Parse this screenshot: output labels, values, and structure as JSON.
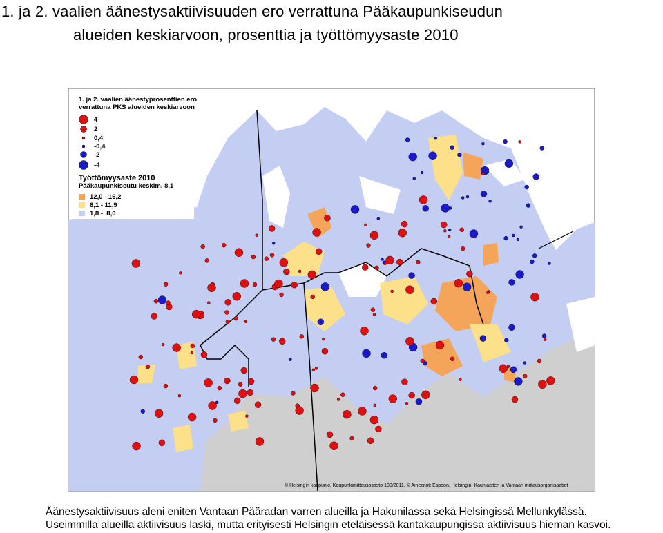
{
  "header": {
    "title_lines": [
      "1. ja 2. vaalien äänestysaktiivisuuden ero verrattuna Pääkaupunkiseudun",
      "alueiden keskiarvoon, prosenttia ja työttömyysaste 2010"
    ]
  },
  "legend": {
    "title_lines": [
      "1. ja 2. vaalien äänestyprosenttien ero",
      "verrattuna PKS alueiden keskiarvoon"
    ],
    "dots": [
      "4",
      "2",
      "0,4",
      "-0,4",
      "-2",
      "-4"
    ],
    "area_title": "Työttömyysaste 2010",
    "area_subtitle": "Pääkaupunkiseutu keskim. 8,1",
    "areas": [
      "12,0 - 16,2",
      "8,1 - 11,9",
      "1,8 -  8,0"
    ]
  },
  "copyright": "© Helsingin kaupunki, Kaupunkimittausosasto 100/2011, © Aineistot: Espoon, Helsingin, Kauniaisten ja Vantaan mittausorganisaatiot",
  "caption_lines": [
    "Äänestysaktiivisuus aleni eniten Vantaan Pääradan varren alueilla ja Hakunilassa sekä Helsingissä Mellunkylässä.",
    "Useimmilla alueilla aktiivisuus laski, mutta  erityisesti Helsingin eteläisessä kantakaupungissa aktiivisuus hieman kasvoi."
  ]
}
